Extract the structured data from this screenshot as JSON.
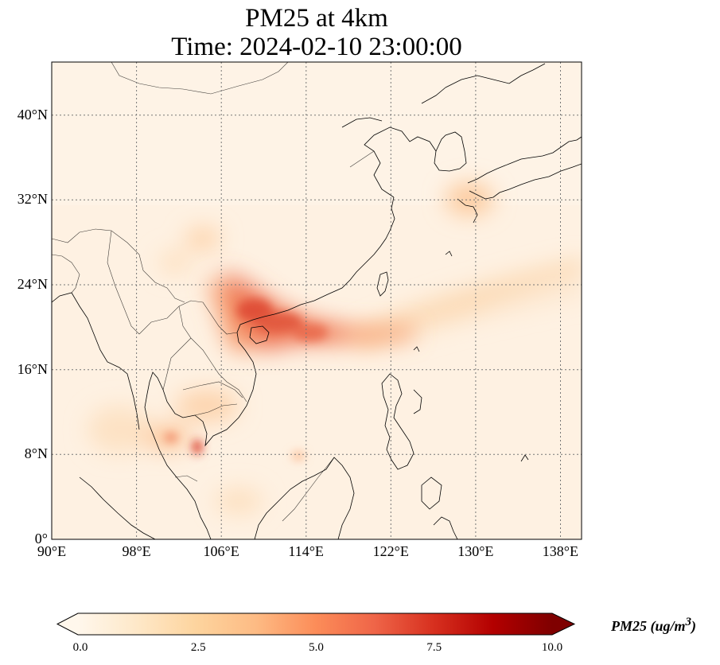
{
  "title": {
    "line1": "PM25 at 4km",
    "line2": "Time: 2024-02-10 23:00:00"
  },
  "map": {
    "lon_range": [
      90,
      140
    ],
    "lat_range": [
      0,
      45
    ],
    "x_ticks": [
      {
        "lon": 90,
        "label": "90°E"
      },
      {
        "lon": 98,
        "label": "98°E"
      },
      {
        "lon": 106,
        "label": "106°E"
      },
      {
        "lon": 114,
        "label": "114°E"
      },
      {
        "lon": 122,
        "label": "122°E"
      },
      {
        "lon": 130,
        "label": "130°E"
      },
      {
        "lon": 138,
        "label": "138°E"
      }
    ],
    "y_ticks": [
      {
        "lat": 0,
        "label": "0°"
      },
      {
        "lat": 8,
        "label": "8°N"
      },
      {
        "lat": 16,
        "label": "16°N"
      },
      {
        "lat": 24,
        "label": "24°N"
      },
      {
        "lat": 32,
        "label": "32°N"
      },
      {
        "lat": 40,
        "label": "40°N"
      }
    ],
    "gridlines": true,
    "colormap": "OrRd"
  },
  "colorbar": {
    "min": 0.0,
    "max": 10.0,
    "ticks": [
      "0.0",
      "2.5",
      "5.0",
      "7.5",
      "10.0"
    ],
    "label_name": "PM25",
    "label_unit": "(ug/m",
    "label_sup": "3",
    "label_close": ")",
    "extend": "both",
    "colors": [
      "#fff7ec",
      "#fee8c8",
      "#fdd49e",
      "#fdbb84",
      "#fc8d59",
      "#ef6548",
      "#d7301f",
      "#b30000",
      "#7f0000"
    ]
  }
}
